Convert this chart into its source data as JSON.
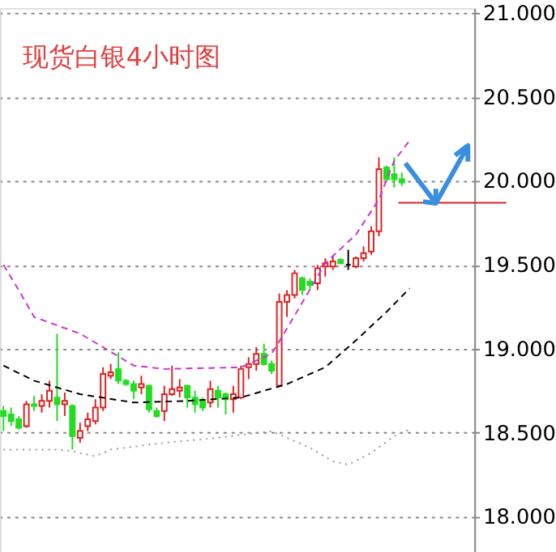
{
  "chart_data": {
    "type": "candlestick",
    "title": "现货白银4小时图",
    "categories": [
      null,
      null,
      null,
      null,
      null,
      null,
      null,
      null,
      null,
      null,
      null,
      null,
      null,
      null,
      null,
      null,
      null,
      null,
      null,
      null,
      null,
      null,
      null,
      null,
      null,
      null,
      null,
      null,
      null,
      null,
      null,
      null,
      null,
      null,
      null,
      null,
      null,
      null,
      null,
      null,
      null,
      null,
      null,
      null,
      null,
      null,
      null,
      null,
      null,
      null,
      null,
      null,
      null,
      null,
      null,
      null,
      null,
      null,
      null,
      null,
      null,
      null
    ],
    "ohlc": [
      [
        18.63,
        18.66,
        18.51,
        18.6
      ],
      [
        18.61,
        18.65,
        18.54,
        18.57
      ],
      [
        18.58,
        18.6,
        18.52,
        18.53
      ],
      [
        18.54,
        18.69,
        18.53,
        18.67
      ],
      [
        18.67,
        18.72,
        18.63,
        18.66
      ],
      [
        18.66,
        18.73,
        18.62,
        18.69
      ],
      [
        18.69,
        18.81,
        18.65,
        18.75
      ],
      [
        18.71,
        19.09,
        18.57,
        18.67
      ],
      [
        18.67,
        18.74,
        18.6,
        18.69
      ],
      [
        18.66,
        18.67,
        18.4,
        18.48
      ],
      [
        18.47,
        18.56,
        18.44,
        18.51
      ],
      [
        18.54,
        18.62,
        18.51,
        18.58
      ],
      [
        18.57,
        18.7,
        18.55,
        18.65
      ],
      [
        18.65,
        18.89,
        18.63,
        18.85
      ],
      [
        18.84,
        18.91,
        18.82,
        18.86
      ],
      [
        18.88,
        18.98,
        18.79,
        18.81
      ],
      [
        18.81,
        18.82,
        18.78,
        18.79
      ],
      [
        18.79,
        18.81,
        18.7,
        18.75
      ],
      [
        18.77,
        18.84,
        18.73,
        18.79
      ],
      [
        18.78,
        18.78,
        18.62,
        18.64
      ],
      [
        18.63,
        18.65,
        18.59,
        18.6
      ],
      [
        18.63,
        18.78,
        18.57,
        18.73
      ],
      [
        18.73,
        18.9,
        18.72,
        18.76
      ],
      [
        18.75,
        18.82,
        18.71,
        18.77
      ],
      [
        18.78,
        18.78,
        18.65,
        18.71
      ],
      [
        18.71,
        18.75,
        18.62,
        18.67
      ],
      [
        18.69,
        18.71,
        18.63,
        18.65
      ],
      [
        18.68,
        18.81,
        18.65,
        18.76
      ],
      [
        18.75,
        18.78,
        18.65,
        18.71
      ],
      [
        18.73,
        18.74,
        18.61,
        18.7
      ],
      [
        18.7,
        18.78,
        18.62,
        18.73
      ],
      [
        18.71,
        18.9,
        18.7,
        18.88
      ],
      [
        18.89,
        18.95,
        18.82,
        18.91
      ],
      [
        18.91,
        19.01,
        18.87,
        18.97
      ],
      [
        18.97,
        19.03,
        18.9,
        18.91
      ],
      [
        18.91,
        18.93,
        18.85,
        18.87
      ],
      [
        18.78,
        19.33,
        18.78,
        19.28
      ],
      [
        19.28,
        19.35,
        19.19,
        19.32
      ],
      [
        19.32,
        19.47,
        19.3,
        19.45
      ],
      [
        19.42,
        19.43,
        19.32,
        19.35
      ],
      [
        19.4,
        19.42,
        19.35,
        19.38
      ],
      [
        19.39,
        19.5,
        19.35,
        19.48
      ],
      [
        19.49,
        19.54,
        19.43,
        19.51
      ],
      [
        19.49,
        19.55,
        19.47,
        19.52
      ],
      [
        19.53,
        19.54,
        19.51,
        19.51
      ],
      [
        19.5,
        19.59,
        19.47,
        19.5
      ],
      [
        19.49,
        19.55,
        19.48,
        19.54
      ],
      [
        19.54,
        19.61,
        19.52,
        19.57
      ],
      [
        19.58,
        19.73,
        19.56,
        19.7
      ],
      [
        19.7,
        20.14,
        19.67,
        20.07
      ],
      [
        20.08,
        20.09,
        20.0,
        20.01
      ],
      [
        20.04,
        20.14,
        19.96,
        20.01
      ],
      [
        20.01,
        20.05,
        19.97,
        19.99
      ],
      null,
      null,
      null,
      null,
      null,
      null,
      null,
      null,
      null
    ],
    "colors": [
      "#22dd22",
      "#22dd22",
      "#22dd22",
      "#dd2222",
      "#22dd22",
      "#dd2222",
      "#dd2222",
      "#22dd22",
      "#dd2222",
      "#22dd22",
      "#dd2222",
      "#dd2222",
      "#dd2222",
      "#dd2222",
      "#dd2222",
      "#22dd22",
      "#22dd22",
      "#22dd22",
      "#dd2222",
      "#22dd22",
      "#22dd22",
      "#dd2222",
      "#dd2222",
      "#dd2222",
      "#22dd22",
      "#22dd22",
      "#22dd22",
      "#dd2222",
      "#22dd22",
      "#22dd22",
      "#dd2222",
      "#dd2222",
      "#dd2222",
      "#dd2222",
      "#22dd22",
      "#22dd22",
      "#dd2222",
      "#dd2222",
      "#dd2222",
      "#22dd22",
      "#22dd22",
      "#dd2222",
      "#dd2222",
      "#dd2222",
      "#22dd22",
      "#000000",
      "#dd2222",
      "#dd2222",
      "#dd2222",
      "#dd2222",
      "#22dd22",
      "#22dd22",
      "#22dd22",
      null,
      null,
      null,
      null,
      null,
      null,
      null,
      null,
      null
    ],
    "series": [
      {
        "type": "line",
        "color": "#cc33cc",
        "line_style": "dashed",
        "values": [
          19.5,
          null,
          19.35,
          null,
          19.19,
          null,
          null,
          null,
          null,
          null,
          19.09,
          null,
          null,
          19.01,
          null,
          null,
          null,
          18.9,
          null,
          null,
          null,
          18.88,
          null,
          null,
          null,
          null,
          null,
          null,
          null,
          null,
          null,
          18.89,
          null,
          null,
          null,
          18.97,
          null,
          19.12,
          null,
          null,
          null,
          null,
          19.51,
          null,
          null,
          null,
          19.68,
          null,
          null,
          19.89,
          null,
          20.12,
          null,
          20.24,
          null,
          null,
          null,
          null,
          null,
          null,
          null,
          null
        ]
      },
      {
        "type": "line",
        "color": "#000000",
        "line_style": "dashed",
        "values": [
          18.9,
          null,
          null,
          null,
          18.81,
          null,
          null,
          null,
          null,
          null,
          18.73,
          null,
          null,
          null,
          null,
          null,
          null,
          18.68,
          null,
          null,
          null,
          null,
          null,
          null,
          18.69,
          null,
          null,
          null,
          null,
          null,
          null,
          18.71,
          null,
          null,
          null,
          null,
          null,
          18.79,
          null,
          null,
          null,
          null,
          18.89,
          null,
          null,
          null,
          19.05,
          null,
          null,
          null,
          19.22,
          null,
          null,
          19.36,
          null,
          null,
          null,
          null,
          null,
          null,
          null,
          null
        ]
      },
      {
        "type": "line",
        "color": "#999999",
        "line_style": "dotted",
        "values": [
          18.4,
          null,
          null,
          null,
          null,
          null,
          null,
          18.4,
          null,
          18.39,
          null,
          null,
          18.36,
          null,
          18.4,
          null,
          null,
          null,
          null,
          null,
          null,
          18.44,
          null,
          null,
          null,
          null,
          null,
          null,
          18.47,
          null,
          null,
          null,
          null,
          null,
          null,
          18.51,
          null,
          18.47,
          null,
          null,
          18.41,
          null,
          null,
          18.33,
          null,
          18.31,
          null,
          null,
          18.38,
          null,
          null,
          18.48,
          null,
          18.52,
          null,
          null,
          null,
          null,
          null,
          null,
          null,
          null
        ]
      }
    ],
    "ref_lines": [
      {
        "axis": "y",
        "value": 19.87,
        "color": "#dd2222"
      }
    ],
    "ylim": [
      17.78,
      21.03
    ],
    "yticks": [
      {
        "value": 18,
        "label": "18.000"
      },
      {
        "value": 18.5,
        "label": "18.500"
      },
      {
        "value": 19,
        "label": "19.000"
      },
      {
        "value": 19.5,
        "label": "19.500"
      },
      {
        "value": 20,
        "label": "20.000"
      },
      {
        "value": 20.5,
        "label": "20.500"
      },
      {
        "value": 21,
        "label": "21.000"
      }
    ],
    "grid": "y"
  }
}
